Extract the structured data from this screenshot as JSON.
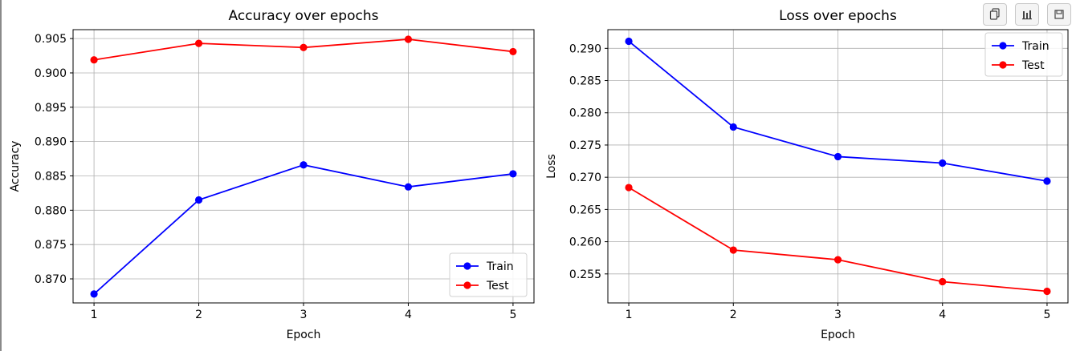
{
  "toolbar": {
    "buttons": [
      {
        "icon": "copy-icon"
      },
      {
        "icon": "bar-chart-icon"
      },
      {
        "icon": "save-icon"
      }
    ]
  },
  "colors": {
    "train": "#0000ff",
    "test": "#ff0000",
    "grid": "#b0b0b0",
    "axis": "#000000"
  },
  "chart_data": [
    {
      "type": "line",
      "title": "Accuracy over epochs",
      "xlabel": "Epoch",
      "ylabel": "Accuracy",
      "x": [
        1,
        2,
        3,
        4,
        5
      ],
      "xlim": [
        0.8,
        5.2
      ],
      "ylim": [
        0.8665,
        0.9063
      ],
      "yticks": [
        0.87,
        0.875,
        0.88,
        0.885,
        0.89,
        0.895,
        0.9,
        0.905
      ],
      "ytick_labels": [
        "0.870",
        "0.875",
        "0.880",
        "0.885",
        "0.890",
        "0.895",
        "0.900",
        "0.905"
      ],
      "xticks": [
        1,
        2,
        3,
        4,
        5
      ],
      "xtick_labels": [
        "1",
        "2",
        "3",
        "4",
        "5"
      ],
      "grid": true,
      "legend": "lower right",
      "series": [
        {
          "name": "Train",
          "color": "#0000ff",
          "values": [
            0.8678,
            0.8815,
            0.8866,
            0.8834,
            0.8853
          ]
        },
        {
          "name": "Test",
          "color": "#ff0000",
          "values": [
            0.9019,
            0.9043,
            0.9037,
            0.9049,
            0.9031
          ]
        }
      ]
    },
    {
      "type": "line",
      "title": "Loss over epochs",
      "xlabel": "Epoch",
      "ylabel": "Loss",
      "x": [
        1,
        2,
        3,
        4,
        5
      ],
      "xlim": [
        0.8,
        5.2
      ],
      "ylim": [
        0.2505,
        0.2929
      ],
      "yticks": [
        0.255,
        0.26,
        0.265,
        0.27,
        0.275,
        0.28,
        0.285,
        0.29
      ],
      "ytick_labels": [
        "0.255",
        "0.260",
        "0.265",
        "0.270",
        "0.275",
        "0.280",
        "0.285",
        "0.290"
      ],
      "xticks": [
        1,
        2,
        3,
        4,
        5
      ],
      "xtick_labels": [
        "1",
        "2",
        "3",
        "4",
        "5"
      ],
      "grid": true,
      "legend": "upper right",
      "series": [
        {
          "name": "Train",
          "color": "#0000ff",
          "values": [
            0.2911,
            0.2778,
            0.2732,
            0.2722,
            0.2694
          ]
        },
        {
          "name": "Test",
          "color": "#ff0000",
          "values": [
            0.2684,
            0.2587,
            0.2572,
            0.2538,
            0.2523
          ]
        }
      ]
    }
  ]
}
